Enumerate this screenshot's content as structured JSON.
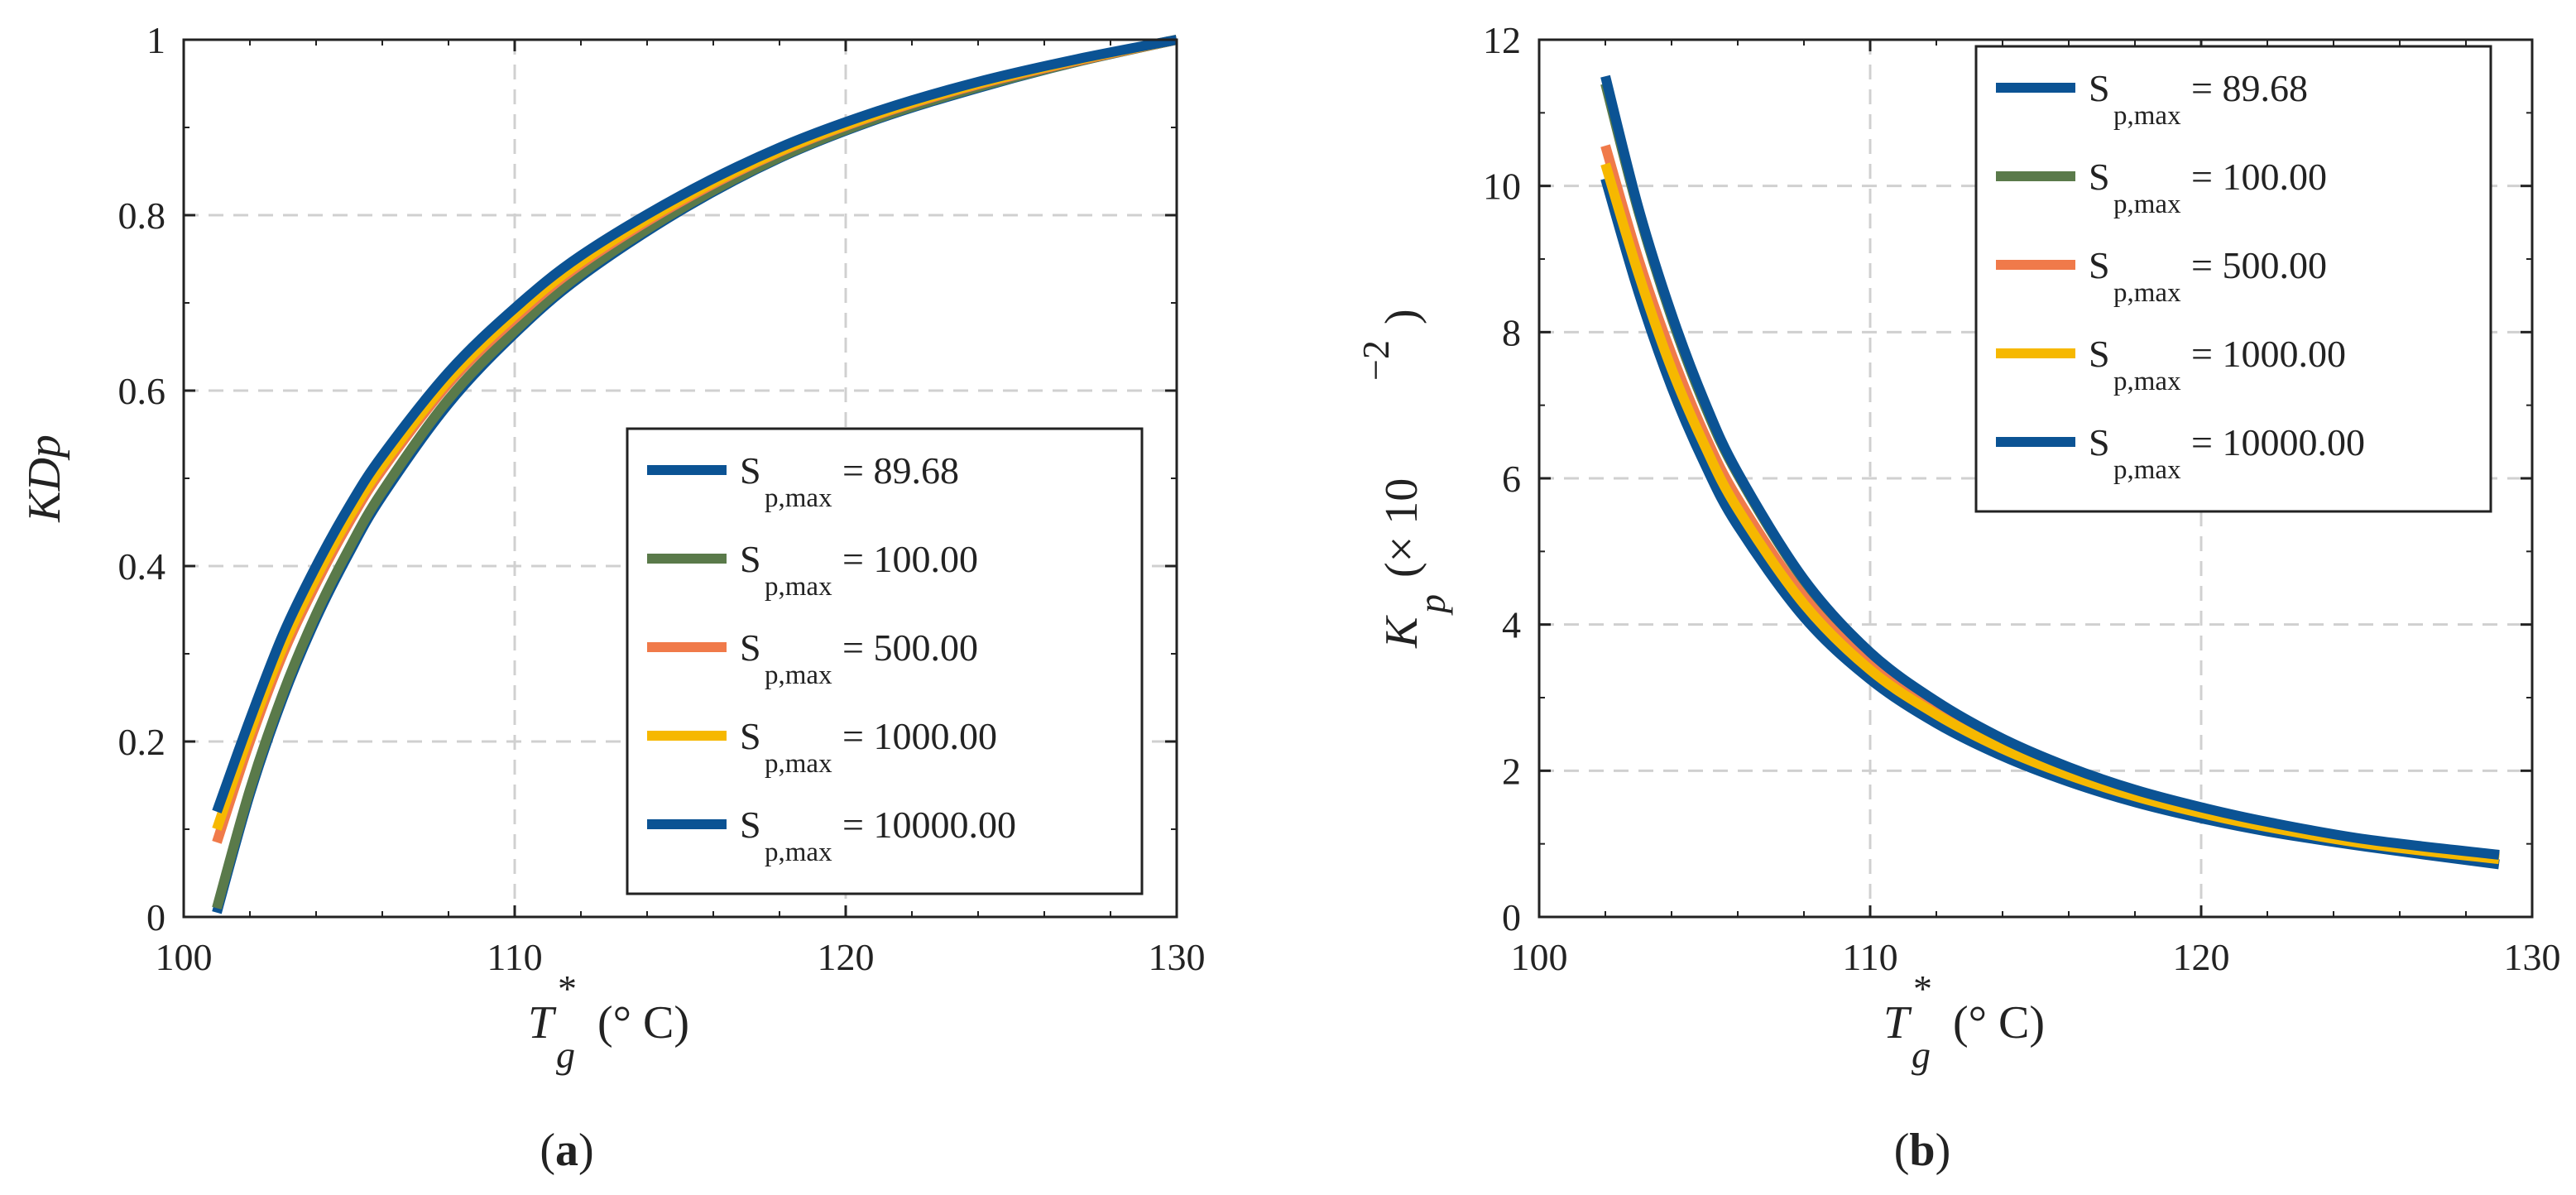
{
  "chart_data": [
    {
      "type": "line",
      "panel_label": "a",
      "title": "",
      "xlabel": "T_g^* (° C)",
      "xlabel_main": "T",
      "xlabel_sub": "g",
      "xlabel_sup": "*",
      "xlabel_unit": "(° C)",
      "ylabel": "KDp",
      "xlim": [
        100,
        130
      ],
      "ylim": [
        0,
        1
      ],
      "xticks": [
        "100",
        "110",
        "120",
        "130"
      ],
      "yticks": [
        "0",
        "0.2",
        "0.4",
        "0.6",
        "0.8",
        "1"
      ],
      "grid": true,
      "legend_position": "bottom-right",
      "x": [
        101,
        102,
        103,
        104,
        105,
        106,
        108,
        110,
        112,
        115,
        118,
        121,
        124,
        127,
        130
      ],
      "series": [
        {
          "name": "S_p,max = 89.68",
          "label_main": "S",
          "label_sub": "p,max",
          "label_value": "= 89.68",
          "color": "#0b5394",
          "values": [
            0.005,
            0.14,
            0.25,
            0.34,
            0.415,
            0.48,
            0.585,
            0.665,
            0.73,
            0.805,
            0.865,
            0.91,
            0.945,
            0.975,
            1.0
          ]
        },
        {
          "name": "S_p,max = 100.00",
          "label_main": "S",
          "label_sub": "p,max",
          "label_value": "= 100.00",
          "color": "#5a7a4a",
          "values": [
            0.01,
            0.145,
            0.255,
            0.345,
            0.42,
            0.485,
            0.59,
            0.668,
            0.733,
            0.807,
            0.866,
            0.911,
            0.946,
            0.975,
            1.0
          ]
        },
        {
          "name": "S_p,max = 500.00",
          "label_main": "S",
          "label_sub": "p,max",
          "label_value": "= 500.00",
          "color": "#f07a4a",
          "values": [
            0.085,
            0.2,
            0.3,
            0.38,
            0.45,
            0.51,
            0.608,
            0.682,
            0.744,
            0.815,
            0.872,
            0.915,
            0.949,
            0.976,
            1.0
          ]
        },
        {
          "name": "S_p,max = 1000.00",
          "label_main": "S",
          "label_sub": "p,max",
          "label_value": "= 1000.00",
          "color": "#f6b800",
          "values": [
            0.1,
            0.21,
            0.308,
            0.387,
            0.456,
            0.515,
            0.612,
            0.686,
            0.747,
            0.817,
            0.873,
            0.916,
            0.95,
            0.977,
            1.0
          ]
        },
        {
          "name": "S_p,max = 10000.00",
          "label_main": "S",
          "label_sub": "p,max",
          "label_value": "= 10000.00",
          "color": "#0b5394",
          "values": [
            0.12,
            0.225,
            0.322,
            0.4,
            0.468,
            0.526,
            0.621,
            0.694,
            0.754,
            0.822,
            0.877,
            0.919,
            0.952,
            0.978,
            1.0
          ]
        }
      ]
    },
    {
      "type": "line",
      "panel_label": "b",
      "title": "",
      "xlabel": "T_g^* (° C)",
      "xlabel_main": "T",
      "xlabel_sub": "g",
      "xlabel_sup": "*",
      "xlabel_unit": "(° C)",
      "ylabel": "K_p (× 10^-2)",
      "ylabel_main": "K",
      "ylabel_sub": "p",
      "ylabel_unit_open": "(× 10",
      "ylabel_exp": "−2",
      "ylabel_unit_close": ")",
      "xlim": [
        100,
        130
      ],
      "ylim": [
        0,
        12
      ],
      "xticks": [
        "100",
        "110",
        "120",
        "130"
      ],
      "yticks": [
        "0",
        "2",
        "4",
        "6",
        "8",
        "10",
        "12"
      ],
      "grid": true,
      "legend_position": "top-right",
      "x": [
        102,
        103,
        104,
        105,
        106,
        108,
        110,
        112,
        114,
        116,
        118,
        120,
        122,
        125,
        129
      ],
      "series": [
        {
          "name": "S_p,max = 89.68",
          "label_main": "S",
          "label_sub": "p,max",
          "label_value": "= 89.68",
          "color": "#0b5394",
          "values": [
            10.1,
            8.55,
            7.25,
            6.2,
            5.35,
            4.1,
            3.25,
            2.65,
            2.2,
            1.85,
            1.57,
            1.35,
            1.17,
            0.96,
            0.72
          ]
        },
        {
          "name": "S_p,max = 100.00",
          "label_main": "S",
          "label_sub": "p,max",
          "label_value": "= 100.00",
          "color": "#5a7a4a",
          "values": [
            11.4,
            9.65,
            8.2,
            7.0,
            6.05,
            4.6,
            3.6,
            2.93,
            2.42,
            2.03,
            1.72,
            1.48,
            1.28,
            1.04,
            0.83
          ]
        },
        {
          "name": "S_p,max = 500.00",
          "label_main": "S",
          "label_sub": "p,max",
          "label_value": "= 500.00",
          "color": "#f07a4a",
          "values": [
            10.55,
            9.0,
            7.7,
            6.6,
            5.72,
            4.38,
            3.45,
            2.82,
            2.34,
            1.97,
            1.67,
            1.44,
            1.25,
            1.01,
            0.8
          ]
        },
        {
          "name": "S_p,max = 1000.00",
          "label_main": "S",
          "label_sub": "p,max",
          "label_value": "= 1000.00",
          "color": "#f6b800",
          "values": [
            10.3,
            8.8,
            7.5,
            6.45,
            5.58,
            4.28,
            3.38,
            2.77,
            2.3,
            1.94,
            1.65,
            1.42,
            1.23,
            1.0,
            0.79
          ]
        },
        {
          "name": "S_p,max = 10000.00",
          "label_main": "S",
          "label_sub": "p,max",
          "label_value": "= 10000.00",
          "color": "#0b5394",
          "values": [
            11.5,
            9.7,
            8.25,
            7.05,
            6.08,
            4.62,
            3.62,
            2.95,
            2.44,
            2.05,
            1.74,
            1.5,
            1.3,
            1.06,
            0.85
          ]
        }
      ]
    }
  ]
}
